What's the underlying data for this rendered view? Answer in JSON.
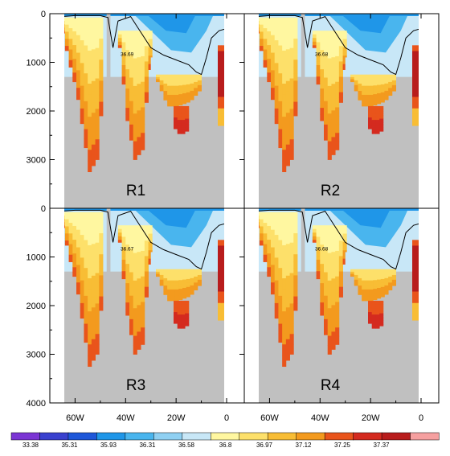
{
  "chart_data": {
    "type": "heatmap",
    "layout": "2x2 panels with shared axes",
    "x_axis": {
      "quantity": "longitude",
      "range": [
        -70,
        7
      ],
      "ticks": [
        -60,
        -40,
        -20,
        0
      ],
      "tick_labels": [
        "60W",
        "40W",
        "20W",
        "0"
      ]
    },
    "y_axis": {
      "quantity": "depth",
      "range": [
        0,
        4000
      ],
      "inverted": true,
      "ticks": [
        0,
        1000,
        2000,
        3000,
        4000
      ],
      "tick_labels": [
        "0",
        "1000",
        "2000",
        "3000",
        "4000"
      ]
    },
    "colorbar": {
      "levels": [
        "33.38",
        "35.31",
        "35.93",
        "36.31",
        "36.58",
        "36.8",
        "36.97",
        "37.12",
        "37.25",
        "37.37"
      ],
      "colors": [
        "#7b35d4",
        "#3a41cf",
        "#1e57d9",
        "#1f96e8",
        "#49b5ee",
        "#8fd0f2",
        "#c8e7f7",
        "#fff7a0",
        "#fde06a",
        "#f8bd35",
        "#f39a1e",
        "#e9541b",
        "#d42a1f",
        "#b81c1c",
        "#f6a0a0"
      ]
    },
    "mask_color": "#c0c0c0",
    "panels": [
      {
        "label": "R1",
        "contour_label": "36.69"
      },
      {
        "label": "R2",
        "contour_label": "36.68"
      },
      {
        "label": "R3",
        "contour_label": "36.67"
      },
      {
        "label": "R4",
        "contour_label": "36.68"
      }
    ]
  }
}
